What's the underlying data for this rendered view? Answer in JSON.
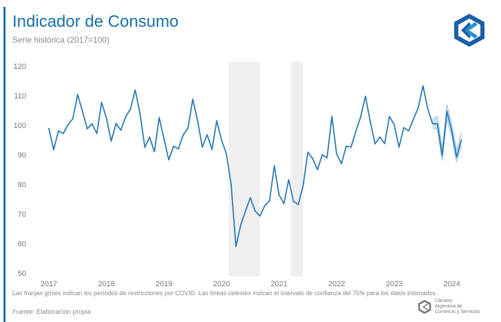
{
  "header": {
    "title": "Indicador de Consumo",
    "subtitle": "Serie histórica (2017=100)"
  },
  "footer": {
    "note": "Las franjas grises indican los períodos de restricciones por COVID. Las líneas celestes indican el intervalo de confianza del 75% para los datos estimados.",
    "source": "Fuente: Elaboración propia",
    "org_name": [
      "Cámara",
      "Argentina de",
      "Comercio y Servicios"
    ]
  },
  "colors": {
    "accent": "#1b6fb3",
    "line": "#2a7bb4",
    "band": "#efefef",
    "confidence": "#9cc6ea"
  },
  "chart_data": {
    "type": "line",
    "start": "2017-01",
    "frequency": "monthly",
    "ylim": [
      50,
      120
    ],
    "yticks": [
      50,
      60,
      70,
      80,
      90,
      100,
      110,
      120
    ],
    "xticks": [
      "2017",
      "2018",
      "2019",
      "2020",
      "2021",
      "2022",
      "2023",
      "2024"
    ],
    "grid": false,
    "values": [
      98.9,
      91.7,
      98.1,
      97.2,
      100.2,
      102.2,
      110.4,
      104.7,
      98.8,
      100.5,
      97.2,
      107.7,
      102.4,
      94.6,
      100.6,
      98.3,
      102.8,
      105.5,
      111.9,
      104.0,
      92.5,
      96.0,
      91.0,
      102.6,
      95.4,
      88.3,
      92.9,
      92.0,
      96.7,
      99.0,
      108.8,
      101.6,
      92.6,
      96.8,
      91.8,
      101.5,
      95.0,
      90.4,
      80.0,
      59.0,
      66.3,
      71.0,
      75.5,
      71.0,
      69.3,
      72.8,
      74.4,
      86.3,
      76.4,
      73.5,
      81.6,
      74.3,
      73.2,
      79.5,
      90.9,
      88.7,
      85.0,
      90.0,
      89.0,
      103.0,
      90.2,
      87.0,
      92.9,
      92.6,
      97.9,
      102.8,
      109.8,
      101.2,
      93.7,
      96.0,
      93.8,
      103.0,
      100.1,
      92.6,
      99.2,
      98.1,
      102.0,
      105.9,
      113.3,
      105.5,
      100.5,
      100.5,
      89.8,
      104.7,
      98.1,
      89.2,
      95.0
    ],
    "confidence_interval": {
      "level": "75%",
      "start": "2023-09",
      "lower": [
        99.0,
        98.5,
        88.0,
        102.0,
        96.0,
        87.5,
        93.0
      ],
      "upper": [
        102.0,
        103.0,
        92.0,
        107.0,
        100.5,
        91.5,
        97.5
      ]
    },
    "covid_bands": [
      [
        "2020-03",
        "2020-09"
      ],
      [
        "2021-04",
        "2021-06"
      ]
    ]
  }
}
